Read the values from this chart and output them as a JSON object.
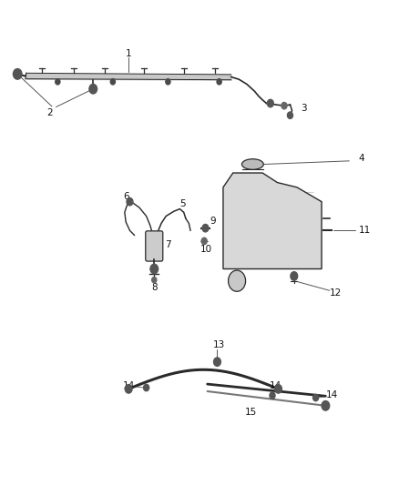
{
  "background_color": "#ffffff",
  "fig_width": 4.38,
  "fig_height": 5.33,
  "dpi": 100,
  "line_color": "#4a4a4a",
  "part_color": "#888888",
  "dark_color": "#2a2a2a",
  "label_color": "#111111",
  "label_fontsize": 7.5
}
